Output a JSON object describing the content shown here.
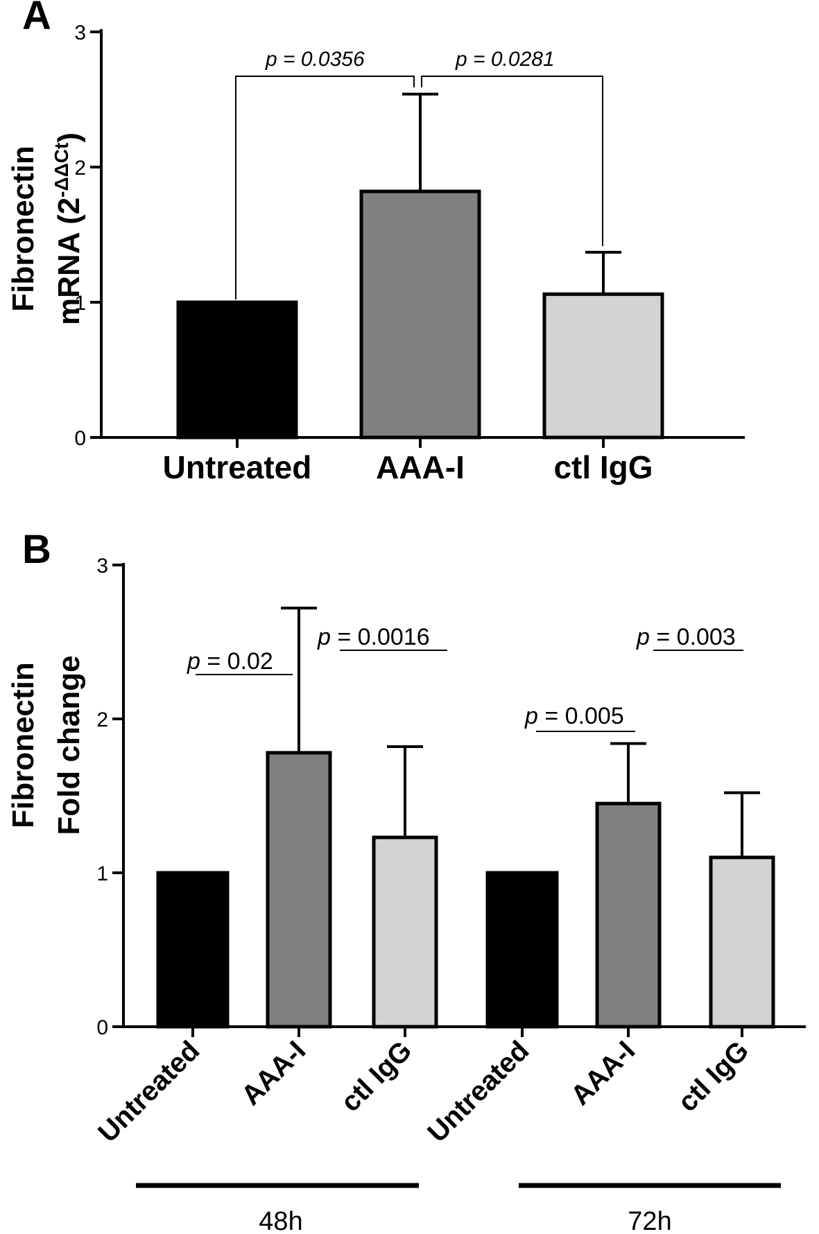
{
  "chart_data": [
    {
      "panel": "A",
      "type": "bar",
      "ylabel_line1": "Fibronectin",
      "ylabel_line2_pre": "mRNA (2",
      "ylabel_sup": "-ΔΔCt",
      "ylabel_line2_post": ")",
      "ylim": [
        0,
        3
      ],
      "yticks": [
        "0",
        "1",
        "2",
        "3"
      ],
      "categories": [
        "Untreated",
        "AAA-I",
        "ctl IgG"
      ],
      "values": [
        1.0,
        1.82,
        1.06
      ],
      "errors": [
        0.0,
        0.72,
        0.31
      ],
      "colors": [
        "#000000",
        "#808080",
        "#d3d3d3"
      ],
      "comparisons": [
        {
          "from": 0,
          "to": 1,
          "p": "p",
          "text": " = 0.0356"
        },
        {
          "from": 1,
          "to": 2,
          "p": "p",
          "text": " = 0.0281"
        }
      ]
    },
    {
      "panel": "B",
      "type": "bar",
      "ylabel_line1": "Fibronectin",
      "ylabel_line2": "Fold change",
      "ylim": [
        0,
        3
      ],
      "yticks": [
        "0",
        "1",
        "2",
        "3"
      ],
      "categories": [
        "Untreated",
        "AAA-I",
        "ctl IgG",
        "Untreated",
        "AAA-I",
        "ctl IgG"
      ],
      "values": [
        1.0,
        1.78,
        1.23,
        1.0,
        1.45,
        1.1
      ],
      "errors": [
        0.0,
        0.94,
        0.59,
        0.0,
        0.39,
        0.42
      ],
      "colors": [
        "#000000",
        "#808080",
        "#d3d3d3",
        "#000000",
        "#808080",
        "#d3d3d3"
      ],
      "groups": [
        "48h",
        "72h"
      ],
      "comparisons": [
        {
          "p": "p",
          "text": " = 0.02"
        },
        {
          "p": "p",
          "text": " = 0.0016"
        },
        {
          "p": "p",
          "text": " = 0.005"
        },
        {
          "p": "p",
          "text": " = 0.003"
        }
      ]
    }
  ]
}
